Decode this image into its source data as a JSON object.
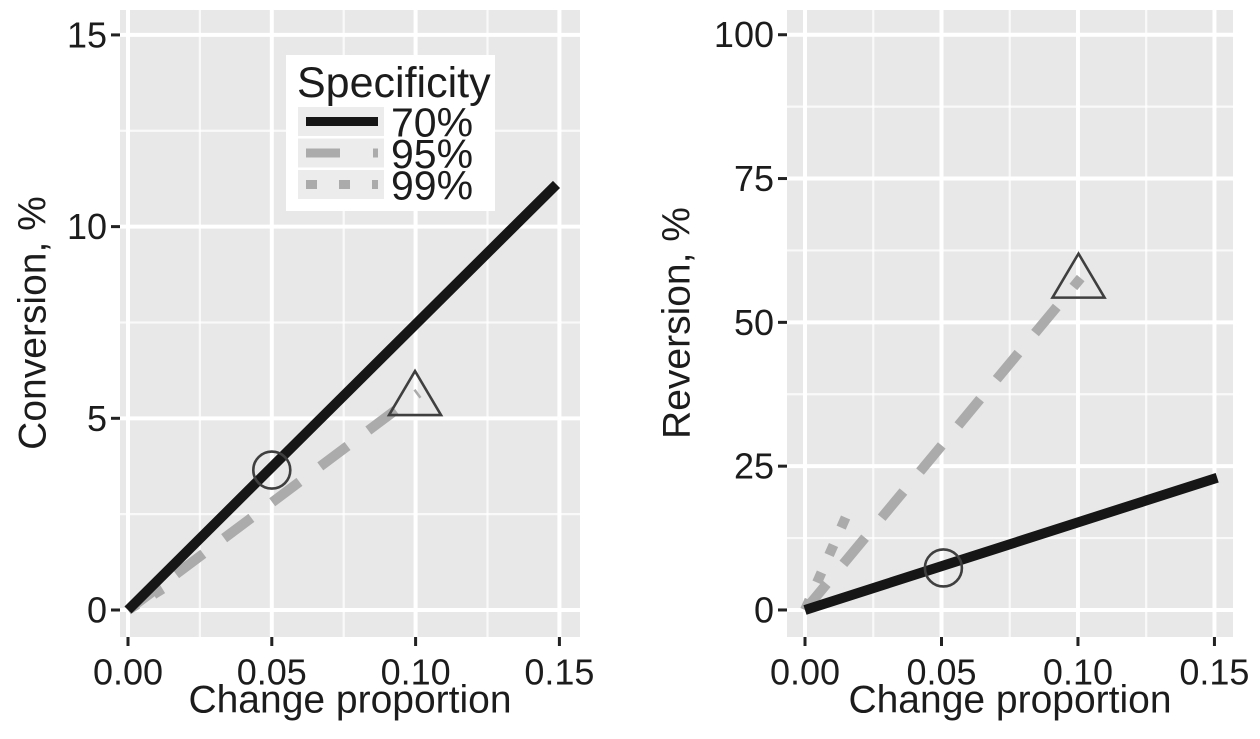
{
  "styles": {
    "figure_bg": "#ffffff",
    "panel_bg": "#e8e8e8",
    "grid_major_color": "#ffffff",
    "grid_minor_color": "#f4f4f4",
    "tick_color": "#222222",
    "text_color": "#1c1c1c",
    "black_line": "#161616",
    "gray_line": "#ababab",
    "marker_stroke": "#3f3f3f",
    "legend_bg": "#ffffff",
    "legend_key_bg": "#ececec"
  },
  "legend": {
    "title": "Specificity",
    "entries": [
      {
        "label": "70%",
        "style": "solid",
        "color": "#161616"
      },
      {
        "label": "95%",
        "style": "dashed",
        "color": "#ababab"
      },
      {
        "label": "99%",
        "style": "dotted",
        "color": "#ababab"
      }
    ]
  },
  "chart_data": [
    {
      "type": "line",
      "panel": "left",
      "title": "",
      "xlabel": "Change proportion",
      "ylabel": "Conversion, %",
      "xlim": [
        -0.00278,
        0.15716
      ],
      "ylim": [
        -0.704,
        15.65
      ],
      "xticks": [
        0,
        0.05,
        0.1,
        0.15
      ],
      "xtick_labels": [
        "0.00",
        "0.05",
        "0.10",
        "0.15"
      ],
      "yticks": [
        0,
        5,
        10,
        15
      ],
      "ytick_labels": [
        "0",
        "5",
        "10",
        "15"
      ],
      "xticks_minor": [
        0.025,
        0.075,
        0.125
      ],
      "yticks_minor": [
        2.5,
        7.5,
        12.5
      ],
      "grid": true,
      "legend_position": "top-left-inside",
      "series": [
        {
          "name": "70%",
          "specificity": "70%",
          "style": "solid",
          "color": "#161616",
          "points": [
            [
              0,
              0
            ],
            [
              0.149,
              11.1
            ]
          ]
        },
        {
          "name": "95%",
          "specificity": "95%",
          "style": "dashed",
          "color": "#ababab",
          "points": [
            [
              0,
              0
            ],
            [
              0.101,
              5.66
            ]
          ]
        },
        {
          "name": "99%",
          "specificity": "99%",
          "style": "dotted",
          "color": "#ababab",
          "points": [
            [
              0,
              0
            ],
            [
              0.012,
              0.55
            ]
          ]
        }
      ],
      "markers": [
        {
          "shape": "circle",
          "x": 0.05,
          "y": 3.65,
          "on_series": "70%"
        },
        {
          "shape": "triangle",
          "x": 0.0998,
          "y": 5.58,
          "on_series": "95%"
        }
      ]
    },
    {
      "type": "line",
      "panel": "right",
      "title": "",
      "xlabel": "Change proportion",
      "ylabel": "Reversion, %",
      "xlim": [
        -0.0066,
        0.1568
      ],
      "ylim": [
        -4.7,
        104.3
      ],
      "xticks": [
        0,
        0.05,
        0.1,
        0.15
      ],
      "xtick_labels": [
        "0.00",
        "0.05",
        "0.10",
        "0.15"
      ],
      "yticks": [
        0,
        25,
        50,
        75,
        100
      ],
      "ytick_labels": [
        "0",
        "25",
        "50",
        "75",
        "100"
      ],
      "xticks_minor": [
        0.025,
        0.075,
        0.125
      ],
      "yticks_minor": [
        12.5,
        37.5,
        62.5,
        87.5
      ],
      "grid": true,
      "legend_position": "none",
      "series": [
        {
          "name": "70%",
          "specificity": "70%",
          "style": "solid",
          "color": "#161616",
          "points": [
            [
              0,
              0
            ],
            [
              0.151,
              23.0
            ]
          ]
        },
        {
          "name": "95%",
          "specificity": "95%",
          "style": "dashed",
          "color": "#ababab",
          "points": [
            [
              0,
              0
            ],
            [
              0.101,
              57.7
            ]
          ]
        },
        {
          "name": "99%",
          "specificity": "99%",
          "style": "dotted",
          "color": "#ababab",
          "points": [
            [
              0,
              0
            ],
            [
              0.0157,
              17.0
            ]
          ]
        }
      ],
      "markers": [
        {
          "shape": "circle",
          "x": 0.0507,
          "y": 7.3,
          "on_series": "70%"
        },
        {
          "shape": "triangle",
          "x": 0.1002,
          "y": 57.6,
          "on_series": "95%"
        }
      ]
    }
  ]
}
